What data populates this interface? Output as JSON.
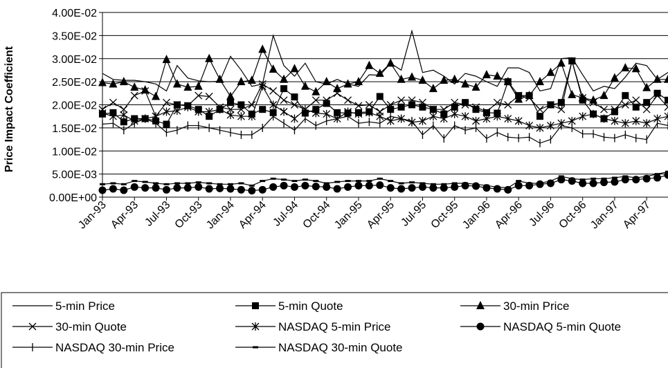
{
  "chart_data": {
    "type": "line",
    "title": "",
    "xlabel": "",
    "ylabel": "Price Impact Coefficient",
    "ylim": [
      0,
      0.04
    ],
    "y_ticks": [
      "0.00E+00",
      "5.00E-03",
      "1.00E-02",
      "1.50E-02",
      "2.00E-02",
      "2.50E-02",
      "3.00E-02",
      "3.50E-02",
      "4.00E-02"
    ],
    "x_tick_labels": [
      "Jan-93",
      "Apr-93",
      "Jul-93",
      "Oct-93",
      "Jan-94",
      "Apr-94",
      "Jul-94",
      "Oct-94",
      "Jan-95",
      "Apr-95",
      "Jul-95",
      "Oct-95",
      "Jan-96",
      "Apr-96",
      "Jul-96",
      "Oct-96",
      "Jan-97",
      "Apr-97"
    ],
    "x_tick_indices": [
      0,
      3,
      6,
      9,
      12,
      15,
      18,
      21,
      24,
      27,
      30,
      33,
      36,
      39,
      42,
      45,
      48,
      51
    ],
    "x": [
      "Jan-93",
      "Feb-93",
      "Mar-93",
      "Apr-93",
      "May-93",
      "Jun-93",
      "Jul-93",
      "Aug-93",
      "Sep-93",
      "Oct-93",
      "Nov-93",
      "Dec-93",
      "Jan-94",
      "Feb-94",
      "Mar-94",
      "Apr-94",
      "May-94",
      "Jun-94",
      "Jul-94",
      "Aug-94",
      "Sep-94",
      "Oct-94",
      "Nov-94",
      "Dec-94",
      "Jan-95",
      "Feb-95",
      "Mar-95",
      "Apr-95",
      "May-95",
      "Jun-95",
      "Jul-95",
      "Aug-95",
      "Sep-95",
      "Oct-95",
      "Nov-95",
      "Dec-95",
      "Jan-96",
      "Feb-96",
      "Mar-96",
      "Apr-96",
      "May-96",
      "Jun-96",
      "Jul-96",
      "Aug-96",
      "Sep-96",
      "Oct-96",
      "Nov-96",
      "Dec-96",
      "Jan-97",
      "Feb-97",
      "Mar-97",
      "Apr-97",
      "May-97",
      "Jun-97"
    ],
    "grid": "horizontal",
    "legend_placement": "bottom",
    "series": [
      {
        "name": "5-min Price",
        "marker": "none",
        "values": [
          0.0268,
          0.0255,
          0.0253,
          0.0253,
          0.025,
          0.0245,
          0.023,
          0.0285,
          0.0258,
          0.0252,
          0.025,
          0.0251,
          0.0305,
          0.0275,
          0.024,
          0.0245,
          0.035,
          0.0285,
          0.0262,
          0.029,
          0.025,
          0.0245,
          0.0255,
          0.0245,
          0.024,
          0.0265,
          0.0264,
          0.029,
          0.0275,
          0.036,
          0.027,
          0.0275,
          0.0262,
          0.0245,
          0.0268,
          0.0262,
          0.025,
          0.024,
          0.028,
          0.028,
          0.027,
          0.023,
          0.0235,
          0.03,
          0.0302,
          0.0265,
          0.023,
          0.024,
          0.0235,
          0.026,
          0.029,
          0.0285,
          0.0255,
          0.027
        ]
      },
      {
        "name": "5-min Quote",
        "marker": "square",
        "values": [
          0.018,
          0.0183,
          0.0163,
          0.017,
          0.017,
          0.0165,
          0.0158,
          0.02,
          0.0198,
          0.019,
          0.0175,
          0.019,
          0.0205,
          0.02,
          0.018,
          0.019,
          0.0183,
          0.0235,
          0.0217,
          0.0182,
          0.019,
          0.0203,
          0.0183,
          0.0182,
          0.0183,
          0.0185,
          0.0218,
          0.019,
          0.0195,
          0.02,
          0.0195,
          0.019,
          0.018,
          0.0195,
          0.0205,
          0.019,
          0.0183,
          0.0182,
          0.025,
          0.022,
          0.022,
          0.0175,
          0.02,
          0.0205,
          0.0295,
          0.021,
          0.018,
          0.017,
          0.0185,
          0.022,
          0.0195,
          0.0205,
          0.0225,
          0.021
        ]
      },
      {
        "name": "30-min Price",
        "marker": "triangle",
        "values": [
          0.0248,
          0.0245,
          0.025,
          0.0238,
          0.0232,
          0.0218,
          0.0298,
          0.0245,
          0.0238,
          0.024,
          0.03,
          0.0255,
          0.0218,
          0.025,
          0.0253,
          0.032,
          0.0277,
          0.0255,
          0.0278,
          0.024,
          0.0228,
          0.025,
          0.0235,
          0.0245,
          0.025,
          0.0285,
          0.0268,
          0.029,
          0.0255,
          0.026,
          0.0253,
          0.0235,
          0.0253,
          0.0255,
          0.0245,
          0.0238,
          0.0265,
          0.0262,
          0.025,
          0.0212,
          0.022,
          0.025,
          0.027,
          0.029,
          0.0222,
          0.0215,
          0.021,
          0.022,
          0.0258,
          0.028,
          0.0278,
          0.0237,
          0.0255,
          0.0255
        ]
      },
      {
        "name": "30-min Quote",
        "marker": "x",
        "values": [
          0.019,
          0.0205,
          0.019,
          0.022,
          0.023,
          0.0175,
          0.0205,
          0.02,
          0.0198,
          0.022,
          0.0218,
          0.0195,
          0.019,
          0.019,
          0.02,
          0.0245,
          0.023,
          0.021,
          0.02,
          0.019,
          0.021,
          0.021,
          0.0225,
          0.021,
          0.0198,
          0.02,
          0.0185,
          0.02,
          0.021,
          0.021,
          0.0205,
          0.019,
          0.019,
          0.0205,
          0.02,
          0.0195,
          0.0185,
          0.0205,
          0.02,
          0.022,
          0.0215,
          0.019,
          0.02,
          0.019,
          0.0295,
          0.0215,
          0.0205,
          0.019,
          0.019,
          0.02,
          0.021,
          0.019,
          0.022,
          0.0195
        ]
      },
      {
        "name": "NASDAQ 5-min Price",
        "marker": "star",
        "values": [
          0.0182,
          0.0175,
          0.0178,
          0.0165,
          0.017,
          0.0175,
          0.0185,
          0.0187,
          0.0195,
          0.0185,
          0.0185,
          0.019,
          0.0178,
          0.0175,
          0.0175,
          0.024,
          0.02,
          0.0185,
          0.017,
          0.019,
          0.0182,
          0.018,
          0.017,
          0.0185,
          0.018,
          0.0183,
          0.0175,
          0.0165,
          0.017,
          0.0162,
          0.0165,
          0.0175,
          0.017,
          0.018,
          0.0175,
          0.0165,
          0.017,
          0.0175,
          0.017,
          0.0165,
          0.0155,
          0.015,
          0.0155,
          0.016,
          0.0165,
          0.0175,
          0.018,
          0.017,
          0.0165,
          0.016,
          0.0165,
          0.016,
          0.017,
          0.0175
        ]
      },
      {
        "name": "NASDAQ 5-min Quote",
        "marker": "circle",
        "values": [
          0.0015,
          0.0018,
          0.0015,
          0.0022,
          0.002,
          0.002,
          0.0016,
          0.002,
          0.002,
          0.0022,
          0.0018,
          0.0019,
          0.0018,
          0.0016,
          0.0014,
          0.0016,
          0.0022,
          0.0025,
          0.0022,
          0.0025,
          0.0023,
          0.0022,
          0.0018,
          0.0022,
          0.0025,
          0.0025,
          0.0026,
          0.002,
          0.0018,
          0.002,
          0.0022,
          0.002,
          0.002,
          0.0022,
          0.0025,
          0.0024,
          0.002,
          0.0018,
          0.0016,
          0.0025,
          0.0025,
          0.0028,
          0.003,
          0.0038,
          0.0035,
          0.003,
          0.003,
          0.0032,
          0.0033,
          0.0038,
          0.0038,
          0.004,
          0.0042,
          0.0048
        ]
      },
      {
        "name": "NASDAQ 30-min Price",
        "marker": "plus",
        "values": [
          0.0158,
          0.016,
          0.0145,
          0.016,
          0.017,
          0.016,
          0.014,
          0.0145,
          0.0155,
          0.0155,
          0.015,
          0.0145,
          0.014,
          0.0135,
          0.0135,
          0.015,
          0.0175,
          0.016,
          0.0145,
          0.017,
          0.0155,
          0.0165,
          0.017,
          0.0175,
          0.016,
          0.0163,
          0.016,
          0.0175,
          0.017,
          0.0165,
          0.0135,
          0.0155,
          0.0127,
          0.0155,
          0.0145,
          0.015,
          0.0127,
          0.014,
          0.013,
          0.0128,
          0.013,
          0.0117,
          0.0125,
          0.0155,
          0.015,
          0.0137,
          0.0137,
          0.013,
          0.0128,
          0.0135,
          0.0128,
          0.0125,
          0.016,
          0.0155
        ]
      },
      {
        "name": "NASDAQ 30-min Quote",
        "marker": "dash",
        "values": [
          0.0028,
          0.003,
          0.0028,
          0.0035,
          0.0033,
          0.003,
          0.0028,
          0.003,
          0.003,
          0.0032,
          0.003,
          0.0028,
          0.0028,
          0.003,
          0.0025,
          0.0035,
          0.004,
          0.0038,
          0.0035,
          0.0038,
          0.0035,
          0.003,
          0.0033,
          0.0035,
          0.0035,
          0.0035,
          0.004,
          0.0035,
          0.003,
          0.0032,
          0.003,
          0.0028,
          0.0028,
          0.003,
          0.003,
          0.0028,
          0.0025,
          0.0022,
          0.002,
          0.0035,
          0.003,
          0.003,
          0.0035,
          0.0045,
          0.004,
          0.0038,
          0.004,
          0.004,
          0.0042,
          0.0045,
          0.0042,
          0.0045,
          0.005,
          0.0055
        ]
      }
    ]
  }
}
